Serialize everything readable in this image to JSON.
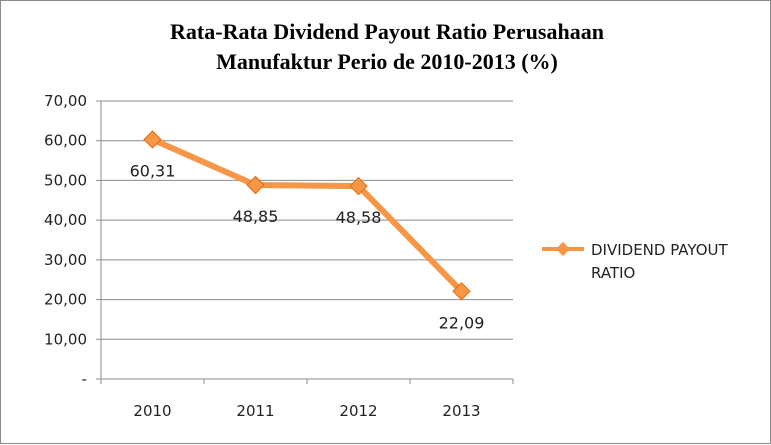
{
  "chart_data": {
    "type": "line",
    "title_lines": [
      "Rata-Rata Dividend Payout Ratio Perusahaan",
      "Manufaktur Perio de 2010-2013 (%)"
    ],
    "categories": [
      "2010",
      "2011",
      "2012",
      "2013"
    ],
    "series": [
      {
        "name_lines": [
          "DIVIDEND PAYOUT",
          "RATIO"
        ],
        "values": [
          60.31,
          48.85,
          48.58,
          22.09
        ],
        "data_labels": [
          "60,31",
          "48,85",
          "48,58",
          "22,09"
        ],
        "color": "#f79646"
      }
    ],
    "y_ticks": [
      {
        "value": 0,
        "label": "-"
      },
      {
        "value": 10,
        "label": "10,00"
      },
      {
        "value": 20,
        "label": "20,00"
      },
      {
        "value": 30,
        "label": "30,00"
      },
      {
        "value": 40,
        "label": "40,00"
      },
      {
        "value": 50,
        "label": "50,00"
      },
      {
        "value": 60,
        "label": "60,00"
      },
      {
        "value": 70,
        "label": "70,00"
      }
    ],
    "ylim": [
      0,
      70
    ],
    "grid": true,
    "legend_position": "right",
    "colors": {
      "line": "#f79646",
      "marker": "#f79646",
      "grid": "#8c8c8c",
      "axis": "#8c8c8c"
    }
  }
}
